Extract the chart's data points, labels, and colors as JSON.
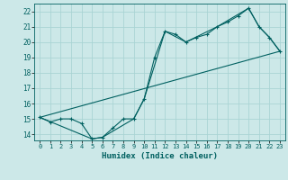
{
  "xlabel": "Humidex (Indice chaleur)",
  "ylabel": "",
  "bg_color": "#cce8e8",
  "line_color": "#006060",
  "grid_color": "#aad4d4",
  "xlim": [
    -0.5,
    23.5
  ],
  "ylim": [
    13.6,
    22.5
  ],
  "xticks": [
    0,
    1,
    2,
    3,
    4,
    5,
    6,
    7,
    8,
    9,
    10,
    11,
    12,
    13,
    14,
    15,
    16,
    17,
    18,
    19,
    20,
    21,
    22,
    23
  ],
  "yticks": [
    14,
    15,
    16,
    17,
    18,
    19,
    20,
    21,
    22
  ],
  "line1_x": [
    0,
    1,
    2,
    3,
    4,
    5,
    6,
    7,
    8,
    9,
    10,
    11,
    12,
    13,
    14,
    15,
    16,
    17,
    18,
    19,
    20,
    21,
    22,
    23
  ],
  "line1_y": [
    15.1,
    14.8,
    15.0,
    15.0,
    14.7,
    13.7,
    13.8,
    14.4,
    15.0,
    15.0,
    16.3,
    19.0,
    20.7,
    20.5,
    20.0,
    20.3,
    20.5,
    21.0,
    21.3,
    21.7,
    22.2,
    21.0,
    20.3,
    19.4
  ],
  "line2_x": [
    0,
    23
  ],
  "line2_y": [
    15.1,
    19.4
  ],
  "line3_x": [
    0,
    5,
    6,
    9,
    10,
    12,
    14,
    17,
    20,
    21,
    22,
    23
  ],
  "line3_y": [
    15.1,
    13.7,
    13.8,
    15.0,
    16.3,
    20.7,
    20.0,
    21.0,
    22.2,
    21.0,
    20.3,
    19.4
  ]
}
